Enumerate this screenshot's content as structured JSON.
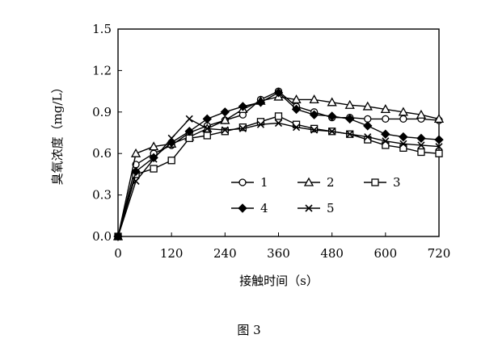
{
  "caption": "图 3",
  "chart_data": {
    "type": "line",
    "xlabel": "接触时间（s）",
    "ylabel": "臭氧浓度（mg/L）",
    "xlim": [
      0,
      720
    ],
    "ylim": [
      0,
      1.5
    ],
    "xticks": [
      0,
      120,
      240,
      360,
      480,
      600,
      720
    ],
    "yticks": [
      0.0,
      0.3,
      0.6,
      0.9,
      1.2,
      1.5
    ],
    "xtick_labels": [
      "0",
      "120",
      "240",
      "360",
      "480",
      "600",
      "720"
    ],
    "ytick_labels": [
      "0.0",
      "0.3",
      "0.6",
      "0.9",
      "1.2",
      "1.5"
    ],
    "grid": false,
    "legend_position": "lower-right inside",
    "series": [
      {
        "name": "1",
        "marker": "circle",
        "x": [
          0,
          40,
          80,
          120,
          160,
          200,
          240,
          280,
          320,
          360,
          400,
          440,
          480,
          520,
          560,
          600,
          640,
          680,
          720
        ],
        "y": [
          0,
          0.52,
          0.6,
          0.66,
          0.75,
          0.8,
          0.84,
          0.88,
          0.99,
          1.05,
          0.94,
          0.9,
          0.86,
          0.86,
          0.85,
          0.85,
          0.85,
          0.85,
          0.84
        ]
      },
      {
        "name": "2",
        "marker": "triangle",
        "x": [
          0,
          40,
          80,
          120,
          160,
          200,
          240,
          280,
          320,
          360,
          400,
          440,
          480,
          520,
          560,
          600,
          640,
          680,
          720
        ],
        "y": [
          0,
          0.6,
          0.65,
          0.67,
          0.72,
          0.78,
          0.84,
          0.92,
          0.98,
          1.01,
          0.99,
          0.99,
          0.97,
          0.95,
          0.94,
          0.92,
          0.9,
          0.88,
          0.85
        ]
      },
      {
        "name": "3",
        "marker": "square",
        "x": [
          0,
          40,
          80,
          120,
          160,
          200,
          240,
          280,
          320,
          360,
          400,
          440,
          480,
          520,
          560,
          600,
          640,
          680,
          720
        ],
        "y": [
          0,
          0.45,
          0.49,
          0.55,
          0.71,
          0.73,
          0.76,
          0.79,
          0.83,
          0.87,
          0.81,
          0.78,
          0.76,
          0.74,
          0.7,
          0.66,
          0.64,
          0.61,
          0.6
        ]
      },
      {
        "name": "4",
        "marker": "diamond",
        "x": [
          0,
          40,
          80,
          120,
          160,
          200,
          240,
          280,
          320,
          360,
          400,
          440,
          480,
          520,
          560,
          600,
          640,
          680,
          720
        ],
        "y": [
          0,
          0.47,
          0.57,
          0.68,
          0.76,
          0.85,
          0.9,
          0.94,
          0.97,
          1.04,
          0.92,
          0.88,
          0.87,
          0.85,
          0.8,
          0.74,
          0.72,
          0.71,
          0.7
        ]
      },
      {
        "name": "5",
        "marker": "x",
        "x": [
          0,
          40,
          80,
          120,
          160,
          200,
          240,
          280,
          320,
          360,
          400,
          440,
          480,
          520,
          560,
          600,
          640,
          680,
          720
        ],
        "y": [
          0,
          0.4,
          0.56,
          0.71,
          0.85,
          0.78,
          0.77,
          0.78,
          0.81,
          0.82,
          0.79,
          0.77,
          0.76,
          0.74,
          0.72,
          0.69,
          0.67,
          0.66,
          0.65
        ]
      }
    ]
  }
}
